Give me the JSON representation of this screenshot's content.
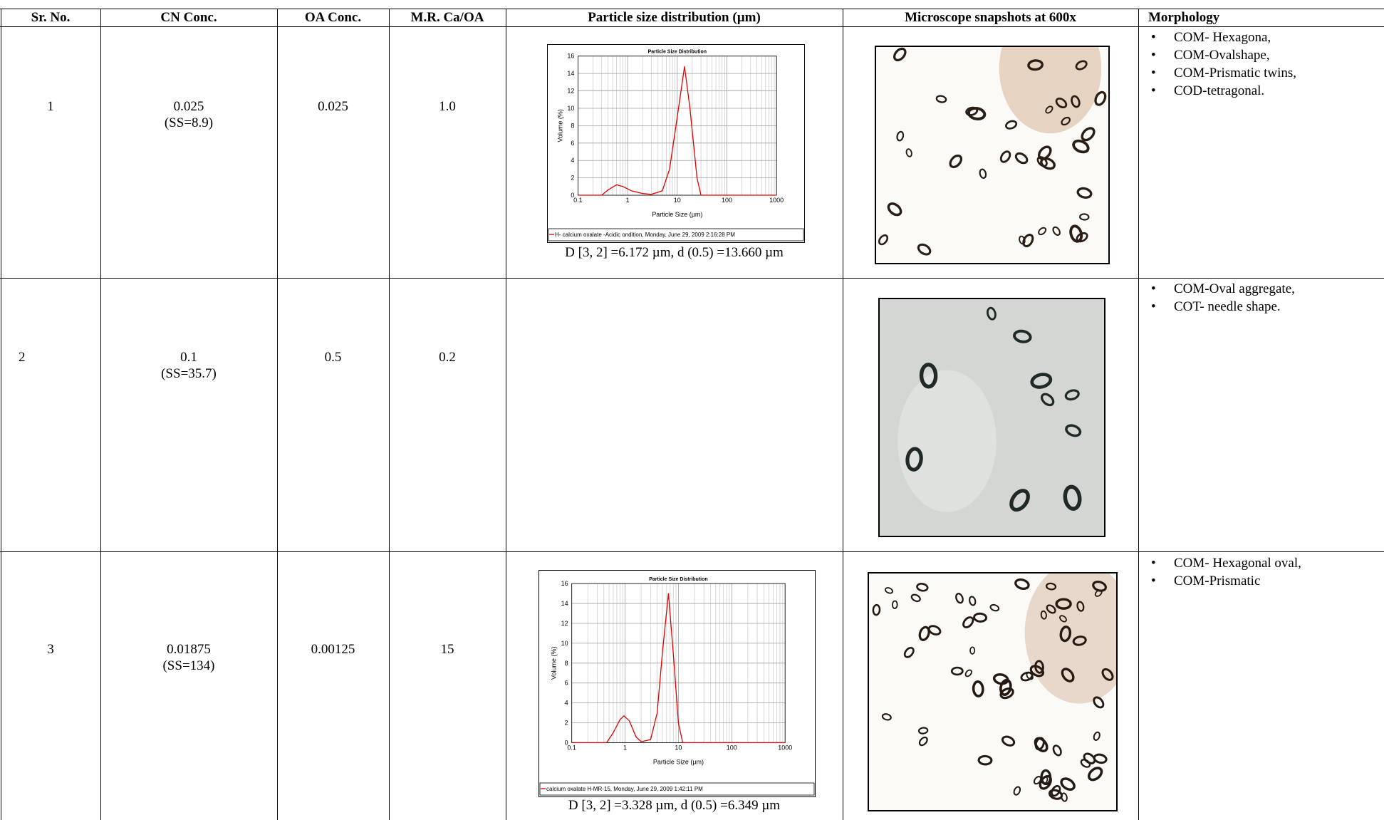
{
  "table": {
    "headers": [
      "Sr. No.",
      "CN Conc.",
      "OA Conc.",
      "M.R. Ca/OA",
      "Particle size distribution  (µm)",
      "Microscope snapshots at 600x",
      "Morphology"
    ],
    "rows": [
      {
        "sr": "1",
        "cn": "0.025",
        "ss": "(SS=8.9)",
        "oa": "0.025",
        "mr": "1.0",
        "psd": {
          "type": "line",
          "title": "Particle Size Distribution",
          "ylabel": "Volume (%)",
          "xlabel": "Particle Size (µm)",
          "xlog": true,
          "grid": true,
          "log_minor_grid": true,
          "xlim": [
            0.1,
            1000
          ],
          "xticks": [
            0.1,
            1,
            10,
            100,
            1000
          ],
          "ylim": [
            0,
            16
          ],
          "yticks": [
            0,
            2,
            4,
            6,
            8,
            10,
            12,
            14,
            16
          ],
          "x": [
            0.1,
            0.3,
            0.4,
            0.6,
            0.8,
            1.2,
            2,
            3,
            5,
            7,
            10,
            14,
            18,
            25,
            30,
            1000
          ],
          "series": [
            {
              "name": "H- calcium oxalate -Acidic ondition, Monday, June 29, 2009 2:16:28 PM",
              "color": "#e00000",
              "values": [
                0,
                0,
                0.6,
                1.2,
                1,
                0.5,
                0.2,
                0.1,
                0.5,
                3,
                9,
                14.8,
                10,
                2,
                0,
                0
              ]
            }
          ]
        },
        "psd_caption": "D [3, 2] =6.172 µm, d (0.5) =13.660 µm",
        "morphology": [
          "COM- Hexagona,",
          "COM-Ovalshape,",
          "COM-Prismatic twins,",
          "COD-tetragonal."
        ]
      },
      {
        "sr": "2",
        "cn": "0.1",
        "ss": "(SS=35.7)",
        "oa": "0.5",
        "mr": "0.2",
        "morphology": [
          "COM-Oval aggregate,",
          "COT- needle shape."
        ]
      },
      {
        "sr": "3",
        "cn": "0.01875",
        "ss": "(SS=134)",
        "oa": "0.00125",
        "mr": "15",
        "psd": {
          "type": "line",
          "title": "Particle Size Distribution",
          "ylabel": "Volume (%)",
          "xlabel": "Particle Size (µm)",
          "xlog": true,
          "grid": true,
          "log_minor_grid": true,
          "xlim": [
            0.1,
            1000
          ],
          "xticks": [
            0.1,
            1,
            10,
            100,
            1000
          ],
          "ylim": [
            0,
            16
          ],
          "yticks": [
            0,
            2,
            4,
            6,
            8,
            10,
            12,
            14,
            16
          ],
          "x": [
            0.1,
            0.45,
            0.6,
            0.8,
            0.95,
            1.2,
            1.6,
            2,
            3,
            4,
            5,
            6.5,
            8,
            10,
            12,
            1000
          ],
          "series": [
            {
              "name": "calcium oxalate H-MR-15, Monday, June 29, 2009 1:42:11 PM",
              "color": "#e00000",
              "values": [
                0,
                0,
                1,
                2.3,
                2.7,
                2.2,
                0.6,
                0.1,
                0.3,
                3,
                9,
                15,
                9,
                2,
                0,
                0
              ]
            }
          ]
        },
        "psd_caption": "D [3, 2] =3.328 µm, d (0.5) =6.349 µm",
        "morphology": [
          "COM- Hexagonal oval,",
          "COM-Prismatic"
        ]
      }
    ]
  }
}
